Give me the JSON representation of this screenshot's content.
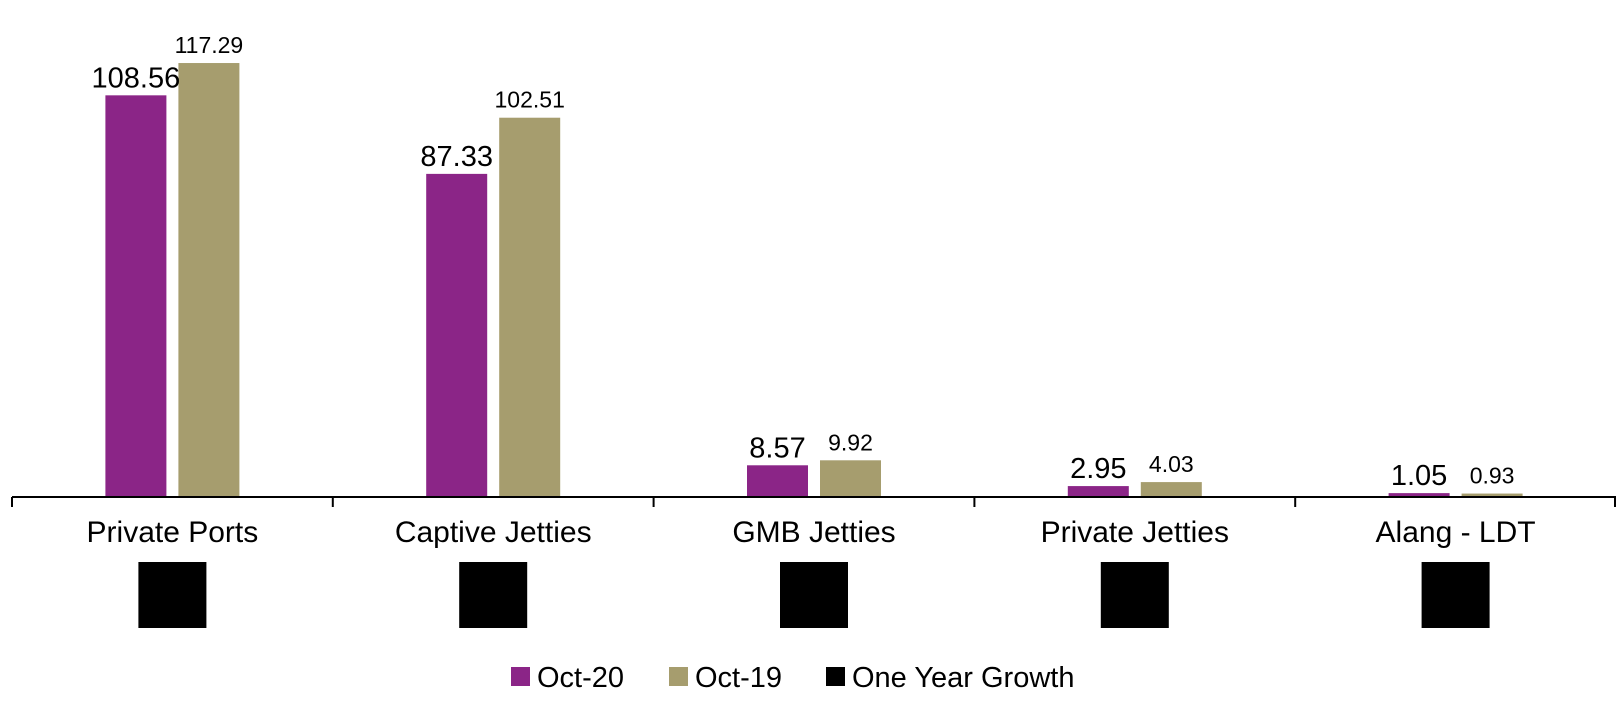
{
  "chart_data": {
    "type": "bar",
    "categories": [
      "Private Ports",
      "Captive Jetties",
      "GMB Jetties",
      "Private Jetties",
      "Alang - LDT"
    ],
    "series": [
      {
        "name": "Oct-20",
        "values": [
          108.56,
          87.33,
          8.57,
          2.95,
          1.05
        ],
        "color": "#8b2587"
      },
      {
        "name": "Oct-19",
        "values": [
          117.29,
          102.51,
          9.92,
          4.03,
          0.93
        ],
        "color": "#a69d6e"
      },
      {
        "name": "One Year Growth",
        "color": "#000000"
      }
    ],
    "ylim": [
      0,
      120
    ],
    "grid": false,
    "legend_position": "bottom",
    "title": "",
    "xlabel": "",
    "ylabel": ""
  }
}
